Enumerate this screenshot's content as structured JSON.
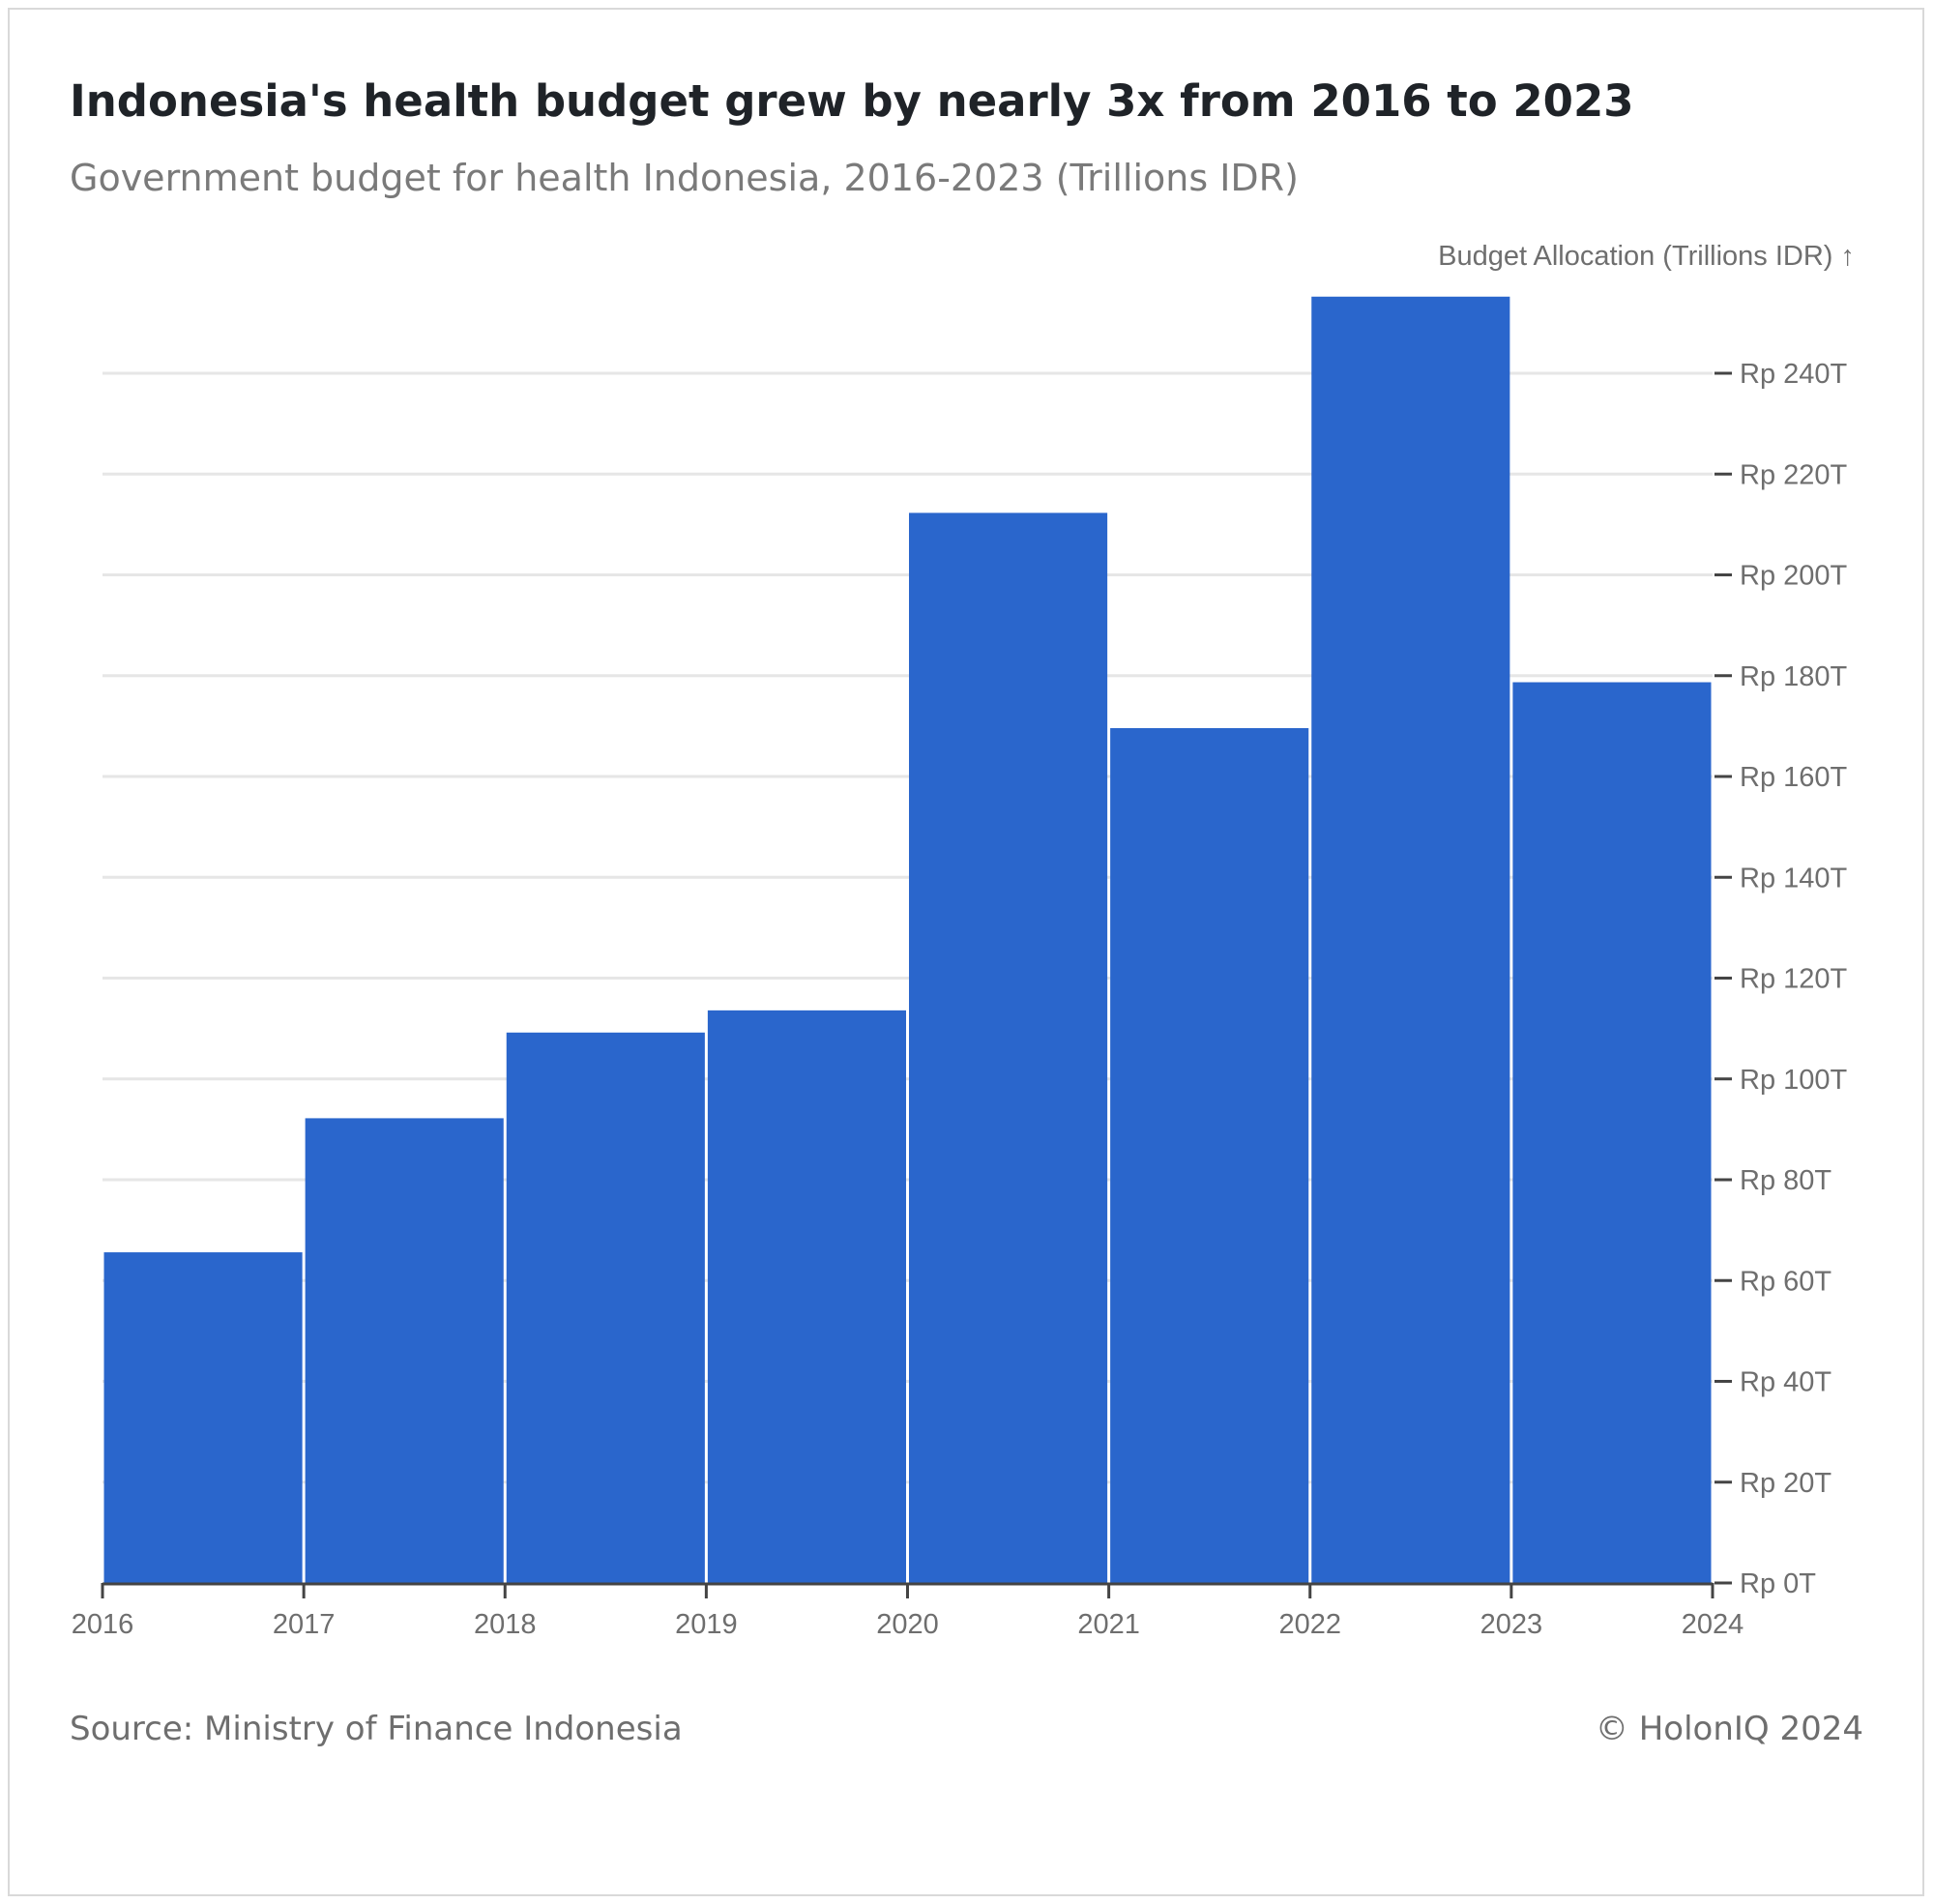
{
  "header": {
    "title": "Indonesia's health budget grew by nearly 3x from 2016 to 2023",
    "subtitle": "Government budget for health Indonesia, 2016-2023 (Trillions IDR)"
  },
  "footer": {
    "source": "Source: Ministry of Finance Indonesia",
    "copyright": "© HolonIQ 2024"
  },
  "colors": {
    "bar": "#2a66cc",
    "grid": "#e6e6e6",
    "axis_text": "#6e6e6e"
  },
  "chart_data": {
    "type": "bar",
    "ylabel": "Budget Allocation (Trillions IDR) ↑",
    "y_axis_position": "right",
    "ylim": [
      0,
      256
    ],
    "grid": true,
    "x_ticks": [
      "2016",
      "2017",
      "2018",
      "2019",
      "2020",
      "2021",
      "2022",
      "2023",
      "2024"
    ],
    "y_ticks": [
      {
        "value": 0,
        "label": "Rp 0T"
      },
      {
        "value": 20,
        "label": "Rp 20T"
      },
      {
        "value": 40,
        "label": "Rp 40T"
      },
      {
        "value": 60,
        "label": "Rp 60T"
      },
      {
        "value": 80,
        "label": "Rp 80T"
      },
      {
        "value": 100,
        "label": "Rp 100T"
      },
      {
        "value": 120,
        "label": "Rp 120T"
      },
      {
        "value": 140,
        "label": "Rp 140T"
      },
      {
        "value": 160,
        "label": "Rp 160T"
      },
      {
        "value": 180,
        "label": "Rp 180T"
      },
      {
        "value": 200,
        "label": "Rp 200T"
      },
      {
        "value": 220,
        "label": "Rp 220T"
      },
      {
        "value": 240,
        "label": "Rp 240T"
      }
    ],
    "bars": [
      {
        "start": 2016,
        "end": 2017,
        "value": 65.6
      },
      {
        "start": 2017,
        "end": 2018,
        "value": 92.2
      },
      {
        "start": 2018,
        "end": 2019,
        "value": 109.2
      },
      {
        "start": 2019,
        "end": 2020,
        "value": 113.6
      },
      {
        "start": 2020,
        "end": 2021,
        "value": 212.3
      },
      {
        "start": 2021,
        "end": 2022,
        "value": 169.6
      },
      {
        "start": 2022,
        "end": 2023,
        "value": 255.2
      },
      {
        "start": 2023,
        "end": 2024,
        "value": 178.7
      }
    ]
  }
}
